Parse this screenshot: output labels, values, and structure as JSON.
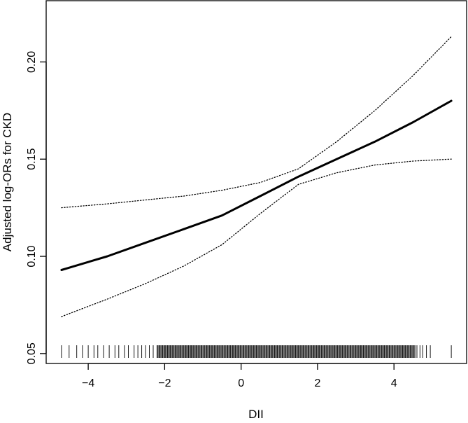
{
  "chart_data": {
    "type": "line",
    "title": "",
    "xlabel": "DII",
    "ylabel": "Adjusted log-ORs for CKD",
    "xlim": [
      -5.1,
      5.9
    ],
    "ylim": [
      0.0449,
      0.2315
    ],
    "x_ticks": [
      {
        "value": -4,
        "label": "−4"
      },
      {
        "value": -2,
        "label": "−2"
      },
      {
        "value": 0,
        "label": "0"
      },
      {
        "value": 2,
        "label": "2"
      },
      {
        "value": 4,
        "label": "4"
      }
    ],
    "y_ticks": [
      {
        "value": 0.05,
        "label": "0.05"
      },
      {
        "value": 0.1,
        "label": "0.10"
      },
      {
        "value": 0.15,
        "label": "0.15"
      },
      {
        "value": 0.2,
        "label": "0.20"
      }
    ],
    "grid": false,
    "legend": "none",
    "series": [
      {
        "role": "estimate",
        "style": "solid",
        "x": [
          -4.7,
          -3.5,
          -2.5,
          -1.5,
          -0.5,
          0.5,
          1.5,
          2.5,
          3.5,
          4.5,
          5.5
        ],
        "y": [
          0.093,
          0.1,
          0.107,
          0.114,
          0.121,
          0.131,
          0.141,
          0.15,
          0.159,
          0.169,
          0.18
        ]
      },
      {
        "role": "upper-ci",
        "style": "dotted",
        "x": [
          -4.7,
          -3.5,
          -2.5,
          -1.5,
          -0.5,
          0.5,
          1.5,
          2.5,
          3.5,
          4.5,
          5.5
        ],
        "y": [
          0.125,
          0.127,
          0.129,
          0.131,
          0.134,
          0.138,
          0.145,
          0.159,
          0.175,
          0.193,
          0.213
        ]
      },
      {
        "role": "lower-ci",
        "style": "dotted",
        "x": [
          -4.7,
          -3.5,
          -2.5,
          -1.5,
          -0.5,
          0.5,
          1.5,
          2.5,
          3.5,
          4.5,
          5.5
        ],
        "y": [
          0.069,
          0.078,
          0.086,
          0.095,
          0.106,
          0.122,
          0.137,
          0.143,
          0.147,
          0.149,
          0.15
        ]
      }
    ],
    "rug": {
      "sparse_low": [
        -4.7,
        -4.5,
        -4.3,
        -4.15,
        -4.0,
        -3.85,
        -3.75,
        -3.6,
        -3.45,
        -3.3,
        -3.2,
        -3.05,
        -2.95,
        -2.8,
        -2.7,
        -2.6,
        -2.5,
        -2.4,
        -2.3
      ],
      "dense_from": -2.2,
      "dense_to": 4.55,
      "dense_step": 0.025,
      "sparse_high": [
        4.6,
        4.68,
        4.75,
        4.85,
        4.95,
        5.5
      ]
    }
  }
}
